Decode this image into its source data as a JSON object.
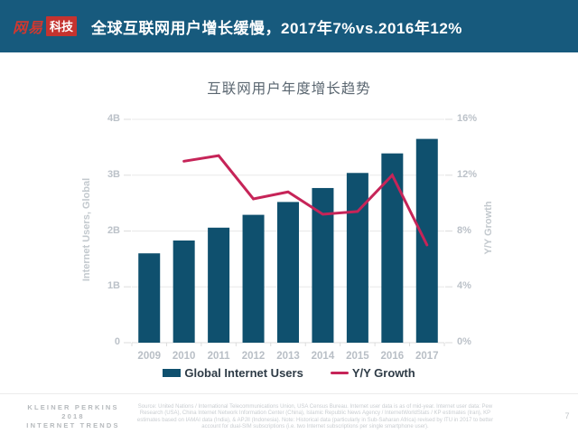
{
  "header": {
    "logo_brand": "网易",
    "logo_sub": "科技",
    "title": "全球互联网用户增长缓慢，2017年7%vs.2016年12%"
  },
  "chart_data": {
    "type": "bar",
    "title": "互联网用户年度增长趋势",
    "categories": [
      "2009",
      "2010",
      "2011",
      "2012",
      "2013",
      "2014",
      "2015",
      "2016",
      "2017"
    ],
    "series": [
      {
        "name": "Global Internet Users",
        "type": "bar",
        "axis": "left",
        "unit": "B",
        "values": [
          1.6,
          1.83,
          2.06,
          2.29,
          2.52,
          2.77,
          3.04,
          3.39,
          3.65
        ],
        "color": "#0f506e"
      },
      {
        "name": "Y/Y Growth",
        "type": "line",
        "axis": "right",
        "unit": "%",
        "values": [
          null,
          13,
          13.4,
          10.3,
          10.8,
          9.2,
          9.4,
          12,
          7
        ],
        "color": "#c62458"
      }
    ],
    "left_axis": {
      "label": "Internet Users, Global",
      "min": 0,
      "max": 4,
      "ticks": [
        "4B",
        "3B",
        "2B",
        "1B",
        "0"
      ]
    },
    "right_axis": {
      "label": "Y/Y Growth",
      "min": 0,
      "max": 16,
      "ticks": [
        "16%",
        "12%",
        "8%",
        "4%",
        "0%"
      ]
    },
    "grid": true,
    "legend_position": "bottom"
  },
  "footer": {
    "brand_lines": [
      "KLEINER PERKINS",
      "2018",
      "INTERNET TRENDS"
    ],
    "source_text": "Source: United Nations / International Telecommunications Union, USA Census Bureau. Internet user data is as of mid-year. Internet user data: Pew Research (USA), China Internet Network Information Center (China), Islamic Republic News Agency / InternetWorldStats / KP estimates (Iran), KP estimates based on IAMAI data (India), & APJII (Indonesia). Note: Historical data (particularly in Sub-Saharan Africa) revised by ITU in 2017 to better account for dual-SIM subscriptions (i.e. two Internet subscriptions per single smartphone user).",
    "page_number": "7"
  },
  "colors": {
    "header_bg": "#175a7d",
    "logo_red": "#c5332f",
    "bar": "#0f506e",
    "line": "#c62458",
    "grid": "#e9e9e9",
    "tick_text": "#bcc2c9"
  }
}
